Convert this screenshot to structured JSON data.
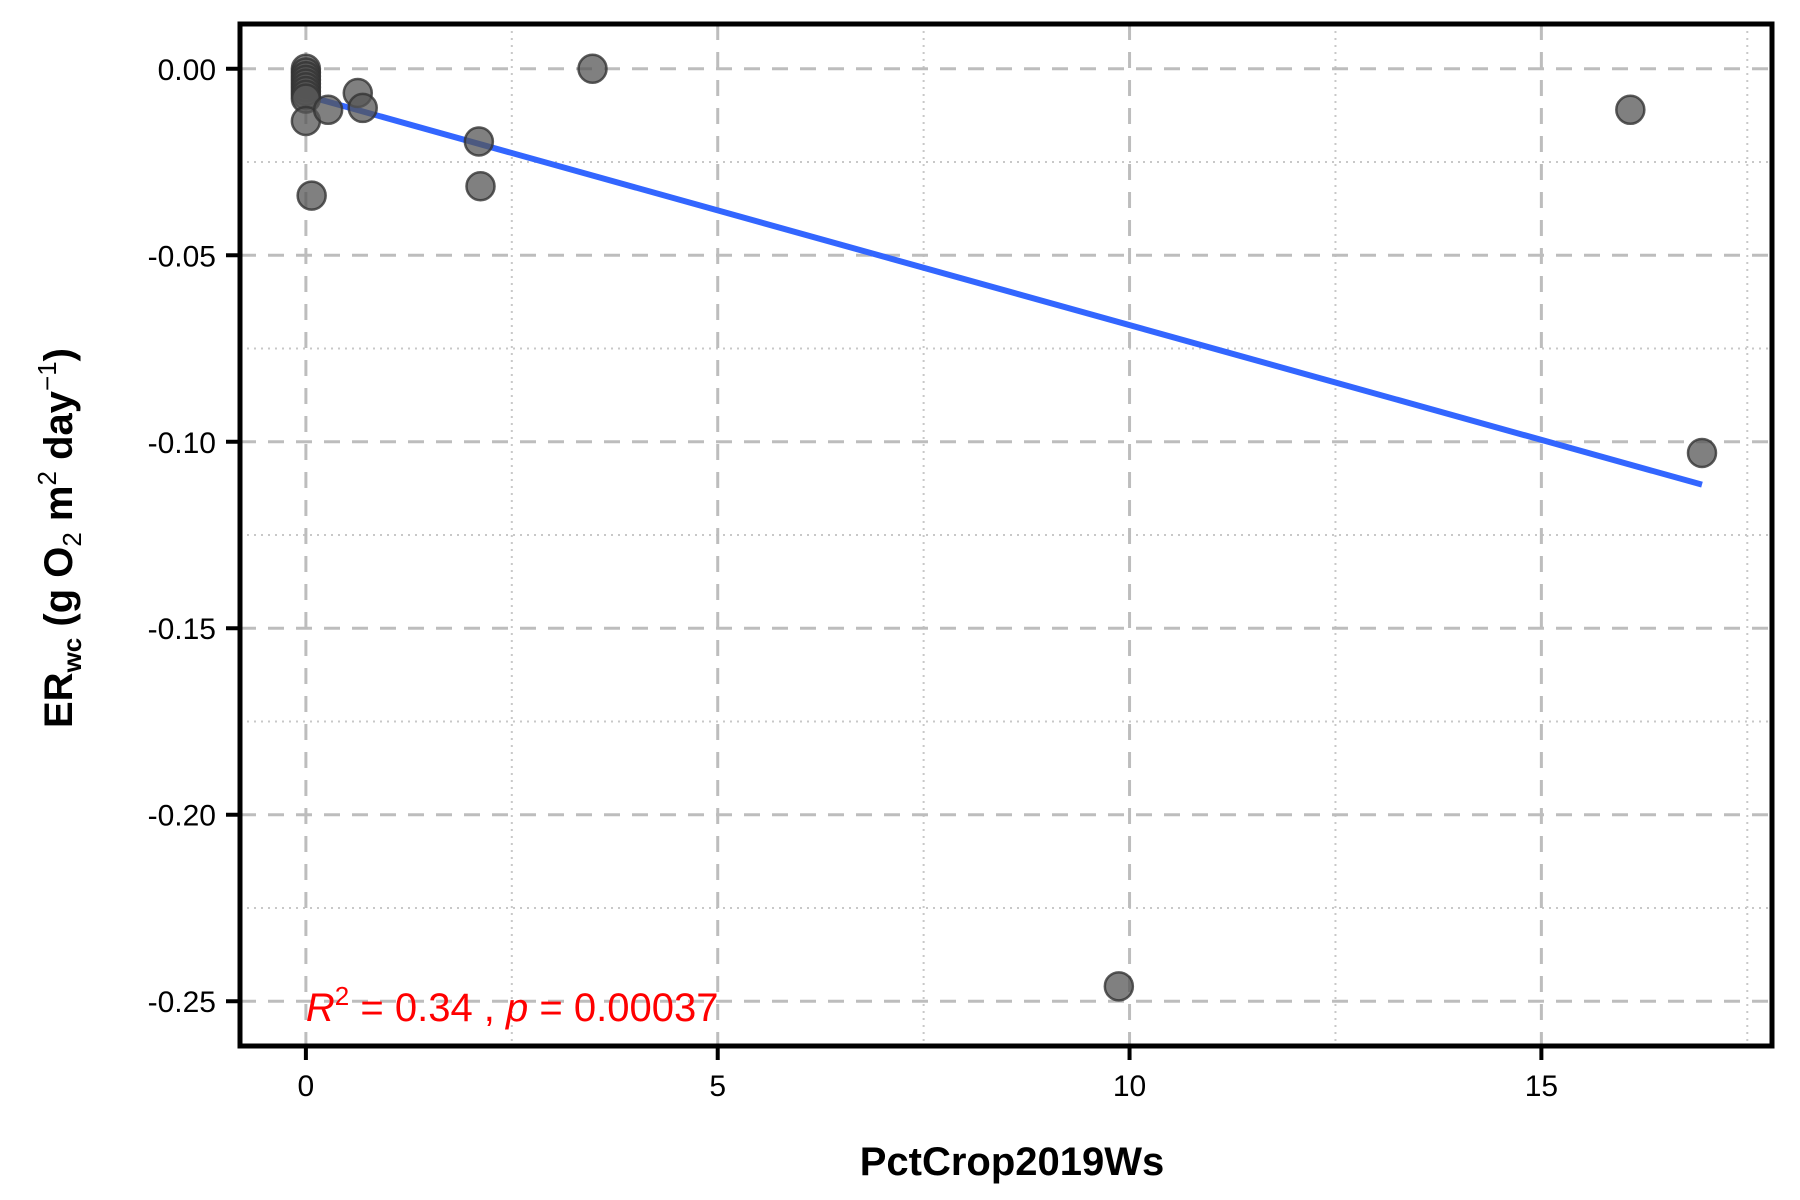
{
  "chart_data": {
    "type": "scatter",
    "xlabel": "PctCrop2019Ws",
    "ylabel": {
      "main": "ER",
      "sub": "wc",
      "unit_open": " (g O",
      "unit_o2_sub": "2",
      "unit_m": " m",
      "unit_m_sup": "2",
      "unit_day": " day",
      "unit_day_sup": "−1",
      "unit_close": ")"
    },
    "xlim": [
      -0.8,
      17.8
    ],
    "ylim": [
      -0.262,
      0.012
    ],
    "x_ticks": [
      0,
      5,
      10,
      15
    ],
    "x_tick_labels": [
      "0",
      "5",
      "10",
      "15"
    ],
    "x_minor_ticks": [
      2.5,
      7.5,
      12.5,
      17.5
    ],
    "y_ticks": [
      0.0,
      -0.05,
      -0.1,
      -0.15,
      -0.2,
      -0.25
    ],
    "y_tick_labels": [
      "0.00",
      "-0.05",
      "-0.10",
      "-0.15",
      "-0.20",
      "-0.25"
    ],
    "y_minor_ticks": [
      -0.025,
      -0.075,
      -0.125,
      -0.175,
      -0.225
    ],
    "grid": true,
    "points": [
      {
        "x": 0.0,
        "y": 0.0
      },
      {
        "x": 0.0,
        "y": -0.001
      },
      {
        "x": 0.0,
        "y": -0.002
      },
      {
        "x": 0.0,
        "y": -0.003
      },
      {
        "x": 0.0,
        "y": -0.004
      },
      {
        "x": 0.0,
        "y": -0.005
      },
      {
        "x": 0.0,
        "y": -0.006
      },
      {
        "x": 0.0,
        "y": -0.007
      },
      {
        "x": 0.0,
        "y": -0.008
      },
      {
        "x": 0.0,
        "y": -0.014
      },
      {
        "x": 0.07,
        "y": -0.034
      },
      {
        "x": 0.27,
        "y": -0.011
      },
      {
        "x": 0.63,
        "y": -0.0065
      },
      {
        "x": 0.69,
        "y": -0.0105
      },
      {
        "x": 2.1,
        "y": -0.0195
      },
      {
        "x": 2.12,
        "y": -0.0315
      },
      {
        "x": 3.48,
        "y": 0.0
      },
      {
        "x": 9.87,
        "y": -0.246
      },
      {
        "x": 16.08,
        "y": -0.011
      },
      {
        "x": 16.95,
        "y": -0.103
      }
    ],
    "regression": {
      "x_start": 0.0,
      "y_start": -0.0072,
      "x_end": 16.95,
      "y_end": -0.1115,
      "color": "#3366ff"
    },
    "annotation": {
      "r_label": "R",
      "r_sup": "2",
      "r_value": " = 0.34 , ",
      "p_label": "p",
      "p_value": " = 0.00037",
      "x": 0.0,
      "y": -0.2515,
      "color": "#ff0000"
    },
    "point_color": "#555555"
  }
}
